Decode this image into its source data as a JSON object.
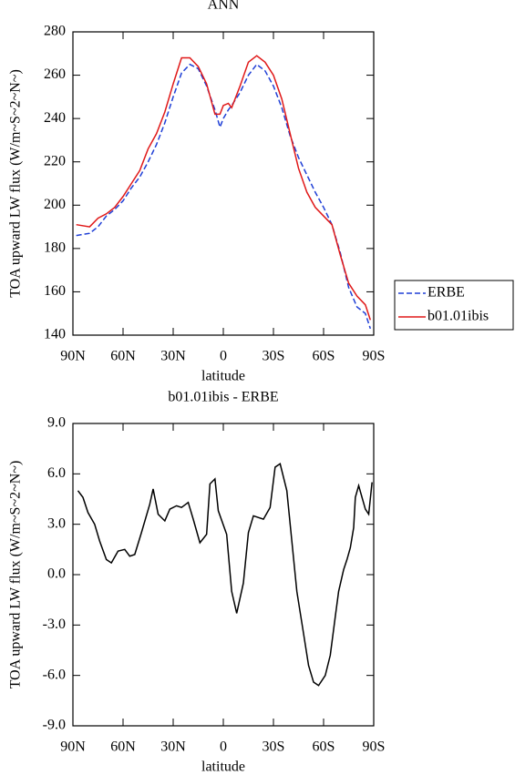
{
  "chart_data": [
    {
      "type": "line",
      "title": "ANN",
      "xlabel": "latitude",
      "ylabel": "TOA upward LW flux (W/m~S~2~N~)",
      "x": [
        88,
        80,
        75,
        70,
        65,
        60,
        55,
        50,
        45,
        40,
        35,
        30,
        25,
        20,
        15,
        10,
        5,
        2,
        0,
        -3,
        -5,
        -10,
        -15,
        -20,
        -25,
        -30,
        -35,
        -40,
        -45,
        -50,
        -55,
        -60,
        -65,
        -70,
        -75,
        -80,
        -85,
        -88
      ],
      "series": [
        {
          "name": "ERBE",
          "color": "#1f3fd6",
          "linestyle": "dashed",
          "values": [
            186,
            187,
            190,
            195,
            198,
            202,
            208,
            213,
            220,
            228,
            238,
            250,
            261,
            265,
            263,
            255,
            244,
            236,
            240,
            244,
            246,
            252,
            260,
            265,
            262,
            255,
            245,
            232,
            222,
            214,
            206,
            199,
            191,
            178,
            162,
            153,
            150,
            143
          ]
        },
        {
          "name": "b01.01ibis",
          "color": "#e01818",
          "linestyle": "solid",
          "values": [
            191,
            190,
            194,
            196,
            199,
            204,
            210,
            216,
            226,
            233,
            243,
            256,
            268,
            268,
            264,
            256,
            242,
            242,
            246,
            247,
            245,
            255,
            266,
            269,
            266,
            260,
            249,
            233,
            217,
            206,
            199,
            195,
            191,
            177,
            164,
            158,
            154,
            147
          ]
        }
      ],
      "xlim": [
        90,
        -90
      ],
      "xticks": [
        {
          "value": 90,
          "label": "90N"
        },
        {
          "value": 60,
          "label": "60N"
        },
        {
          "value": 30,
          "label": "30N"
        },
        0,
        {
          "value": -30,
          "label": "30S"
        },
        {
          "value": -60,
          "label": "60S"
        },
        {
          "value": -90,
          "label": "90S"
        }
      ],
      "ylim": [
        140,
        280
      ],
      "yticks": [
        140,
        160,
        180,
        200,
        220,
        240,
        260,
        280
      ],
      "legend": "outside-right"
    },
    {
      "type": "line",
      "title": "b01.01ibis - ERBE",
      "xlabel": "latitude",
      "ylabel": "TOA upward LW flux (W/m~S~2~N~)",
      "x": [
        87,
        84,
        81,
        77,
        74,
        70,
        67,
        63,
        59,
        56,
        53,
        49,
        44,
        42,
        39,
        35,
        32,
        28,
        25,
        21,
        18,
        14,
        10,
        8,
        5,
        3,
        -2,
        -5,
        -8,
        -12,
        -15,
        -18,
        -24,
        -28,
        -31,
        -34,
        -38,
        -41,
        -44,
        -48,
        -51,
        -54,
        -57,
        -61,
        -64,
        -67,
        -69,
        -72,
        -74,
        -76,
        -78,
        -79,
        -81,
        -85,
        -87,
        -89
      ],
      "series": [
        {
          "color": "#000000",
          "linestyle": "solid",
          "values": [
            5.0,
            4.6,
            3.7,
            3.0,
            2.0,
            0.9,
            0.7,
            1.4,
            1.5,
            1.1,
            1.2,
            2.5,
            4.2,
            5.1,
            3.6,
            3.2,
            3.9,
            4.1,
            4.0,
            4.3,
            3.3,
            1.9,
            2.4,
            5.4,
            5.7,
            3.8,
            2.4,
            -1.0,
            -2.3,
            -0.5,
            2.5,
            3.5,
            3.3,
            4.0,
            6.4,
            6.6,
            5.0,
            2.0,
            -1.0,
            -3.5,
            -5.4,
            -6.4,
            -6.6,
            -6.0,
            -4.8,
            -2.5,
            -1.0,
            0.3,
            0.9,
            1.6,
            2.8,
            4.6,
            5.3,
            3.9,
            3.6,
            5.5
          ]
        }
      ],
      "xlim": [
        90,
        -90
      ],
      "xticks": [
        {
          "value": 90,
          "label": "90N"
        },
        {
          "value": 60,
          "label": "60N"
        },
        {
          "value": 30,
          "label": "30N"
        },
        0,
        {
          "value": -30,
          "label": "30S"
        },
        {
          "value": -60,
          "label": "60S"
        },
        {
          "value": -90,
          "label": "90S"
        }
      ],
      "ylim": [
        -9,
        9
      ],
      "yticks": [
        {
          "value": -9,
          "label": "-9.0"
        },
        {
          "value": -6,
          "label": "-6.0"
        },
        {
          "value": -3,
          "label": "-3.0"
        },
        {
          "value": 0,
          "label": "0.0"
        },
        {
          "value": 3,
          "label": "3.0"
        },
        {
          "value": 6,
          "label": "6.0"
        },
        {
          "value": 9,
          "label": "9.0"
        }
      ]
    }
  ]
}
